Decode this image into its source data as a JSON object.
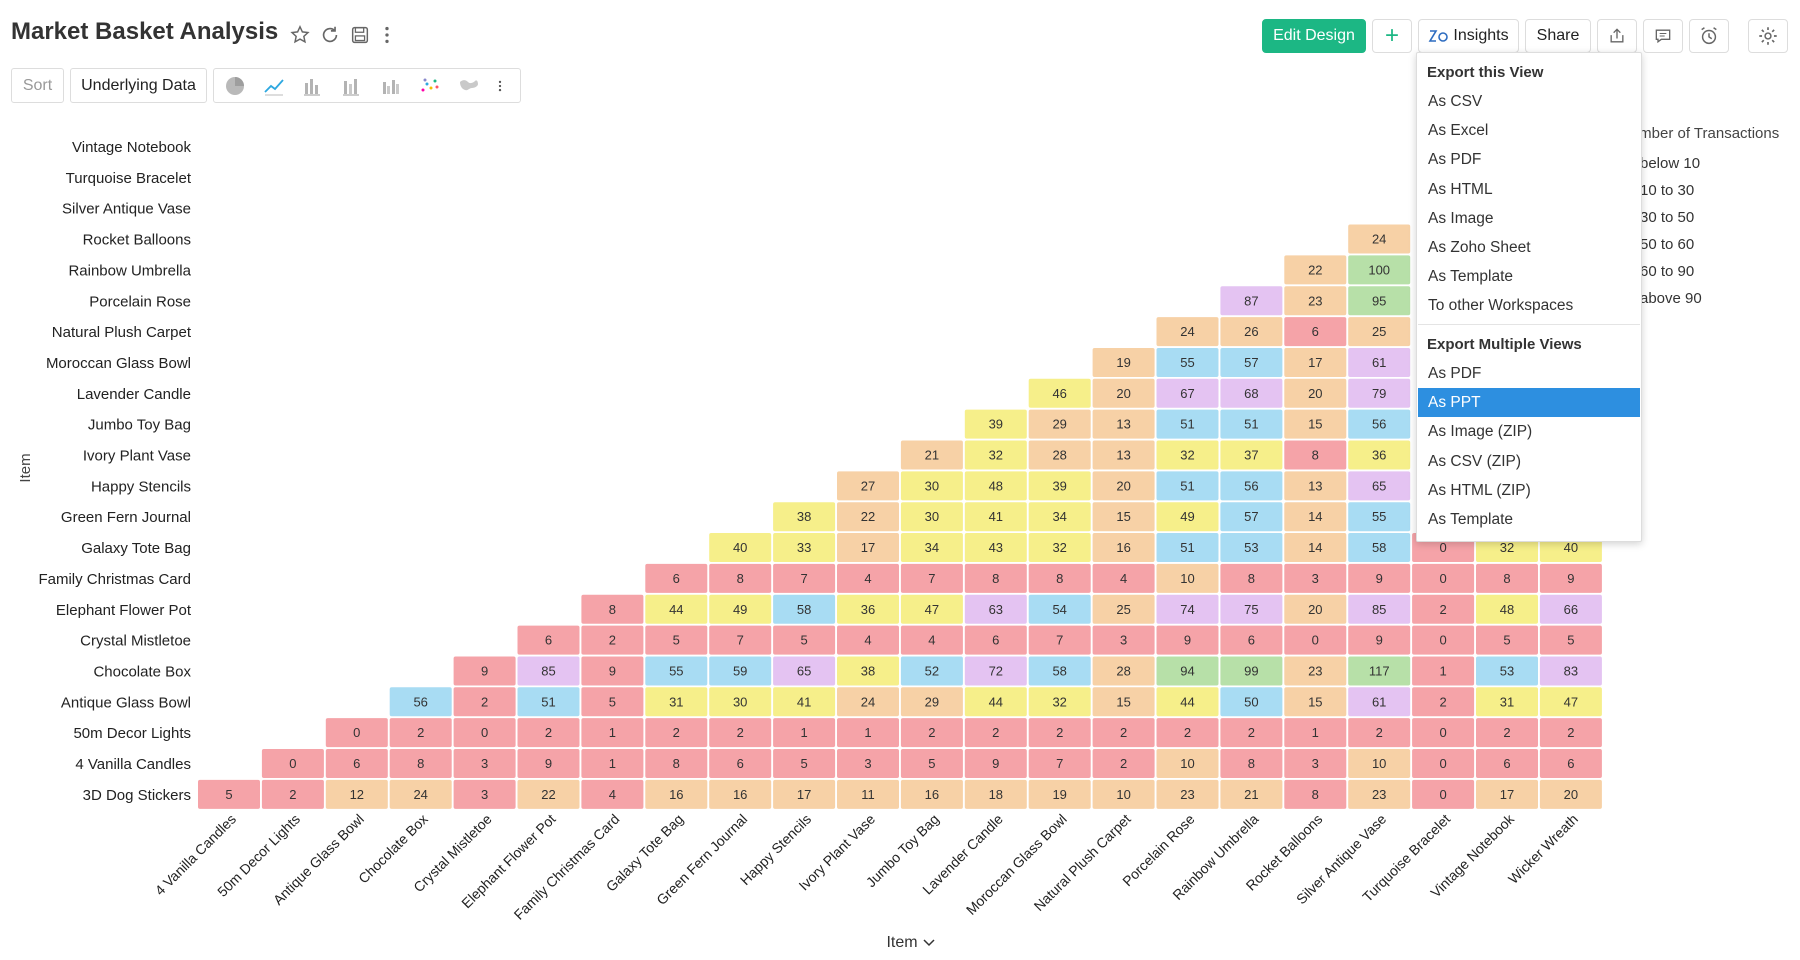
{
  "header": {
    "title": "Market Basket Analysis",
    "icons": [
      "star-icon",
      "refresh-icon",
      "save-icon",
      "more-vertical-icon"
    ],
    "edit_design_label": "Edit Design",
    "add_label": "+",
    "insights_label": "Insights",
    "share_label": "Share",
    "right_icons": [
      "export-icon",
      "comment-icon",
      "alarm-icon",
      "settings-icon"
    ],
    "accent_color": "#1cb784"
  },
  "toolbar": {
    "sort_label": "Sort",
    "underlying_data_label": "Underlying Data",
    "chart_type_icons": [
      "pie-chart-icon",
      "line-chart-icon",
      "bar-chart-icon",
      "stacked-bar-icon",
      "grouped-bar-icon",
      "scatter-icon",
      "map-icon",
      "more-vertical-icon"
    ]
  },
  "export_menu": {
    "section1_title": "Export this View",
    "section1_items": [
      "As CSV",
      "As Excel",
      "As PDF",
      "As HTML",
      "As Image",
      "As Zoho Sheet",
      "As Template",
      "To other Workspaces"
    ],
    "section2_title": "Export Multiple Views",
    "section2_items": [
      "As PDF",
      "As PPT",
      "As Image (ZIP)",
      "As CSV (ZIP)",
      "As HTML (ZIP)",
      "As Template"
    ],
    "selected_item": "As PPT",
    "selected_color": "#2d8fe0"
  },
  "legend": {
    "title": "Number of Transactions",
    "entries": [
      {
        "label": "below 10",
        "color": "#f5a3a8"
      },
      {
        "label": "10 to 30",
        "color": "#f7d1a6"
      },
      {
        "label": "30 to 50",
        "color": "#f6ef8a"
      },
      {
        "label": "50 to 60",
        "color": "#a8dcf3"
      },
      {
        "label": "60 to 90",
        "color": "#e4c3f2"
      },
      {
        "label": "above 90",
        "color": "#b7e0a8"
      }
    ]
  },
  "chart_data": {
    "type": "heatmap",
    "xlabel": "Item",
    "ylabel": "Item",
    "x_categories": [
      "4 Vanilla Candles",
      "50m Decor Lights",
      "Antique Glass Bowl",
      "Chocolate Box",
      "Crystal Mistletoe",
      "Elephant Flower Pot",
      "Family Christmas Card",
      "Galaxy Tote Bag",
      "Green Fern Journal",
      "Happy Stencils",
      "Ivory Plant Vase",
      "Jumbo Toy Bag",
      "Lavender Candle",
      "Moroccan Glass Bowl",
      "Natural Plush Carpet",
      "Porcelain Rose",
      "Rainbow Umbrella",
      "Rocket Balloons",
      "Silver Antique Vase",
      "Turquoise Bracelet",
      "Vintage Notebook",
      "Wicker Wreath"
    ],
    "y_categories_top_to_bottom": [
      "Vintage Notebook",
      "Turquoise Bracelet",
      "Silver Antique Vase",
      "Rocket Balloons",
      "Rainbow Umbrella",
      "Porcelain Rose",
      "Natural Plush Carpet",
      "Moroccan Glass Bowl",
      "Lavender Candle",
      "Jumbo Toy Bag",
      "Ivory Plant Vase",
      "Happy Stencils",
      "Green Fern Journal",
      "Galaxy Tote Bag",
      "Family Christmas Card",
      "Elephant Flower Pot",
      "Crystal Mistletoe",
      "Chocolate Box",
      "Antique Glass Bowl",
      "50m Decor Lights",
      "4 Vanilla Candles",
      "3D Dog Stickers"
    ],
    "rows": [
      {
        "y": "Silver Antique Vase",
        "values": [
          null,
          null,
          null,
          null,
          null,
          null,
          null,
          null,
          null,
          null,
          null,
          null,
          null,
          null,
          null,
          null,
          null,
          null,
          null,
          null,
          null,
          null
        ]
      },
      {
        "y": "Rocket Balloons",
        "values": [
          null,
          null,
          null,
          null,
          null,
          null,
          null,
          null,
          null,
          null,
          null,
          null,
          null,
          null,
          null,
          null,
          null,
          null,
          24,
          null,
          null,
          null
        ]
      },
      {
        "y": "Rainbow Umbrella",
        "values": [
          null,
          null,
          null,
          null,
          null,
          null,
          null,
          null,
          null,
          null,
          null,
          null,
          null,
          null,
          null,
          null,
          null,
          22,
          100,
          null,
          null,
          null
        ]
      },
      {
        "y": "Porcelain Rose",
        "values": [
          null,
          null,
          null,
          null,
          null,
          null,
          null,
          null,
          null,
          null,
          null,
          null,
          null,
          null,
          null,
          null,
          87,
          23,
          95,
          null,
          null,
          null
        ]
      },
      {
        "y": "Natural Plush Carpet",
        "values": [
          null,
          null,
          null,
          null,
          null,
          null,
          null,
          null,
          null,
          null,
          null,
          null,
          null,
          null,
          null,
          24,
          26,
          6,
          25,
          null,
          null,
          null
        ]
      },
      {
        "y": "Moroccan Glass Bowl",
        "values": [
          null,
          null,
          null,
          null,
          null,
          null,
          null,
          null,
          null,
          null,
          null,
          null,
          null,
          null,
          19,
          55,
          57,
          17,
          61,
          null,
          null,
          null
        ]
      },
      {
        "y": "Lavender Candle",
        "values": [
          null,
          null,
          null,
          null,
          null,
          null,
          null,
          null,
          null,
          null,
          null,
          null,
          null,
          46,
          20,
          67,
          68,
          20,
          79,
          null,
          null,
          null
        ]
      },
      {
        "y": "Jumbo Toy Bag",
        "values": [
          null,
          null,
          null,
          null,
          null,
          null,
          null,
          null,
          null,
          null,
          null,
          null,
          39,
          29,
          13,
          51,
          51,
          15,
          56,
          null,
          null,
          null
        ]
      },
      {
        "y": "Ivory Plant Vase",
        "values": [
          null,
          null,
          null,
          null,
          null,
          null,
          null,
          null,
          null,
          null,
          null,
          21,
          32,
          28,
          13,
          32,
          37,
          8,
          36,
          null,
          null,
          null
        ]
      },
      {
        "y": "Happy Stencils",
        "values": [
          null,
          null,
          null,
          null,
          null,
          null,
          null,
          null,
          null,
          null,
          27,
          30,
          48,
          39,
          20,
          51,
          56,
          13,
          65,
          null,
          null,
          null
        ]
      },
      {
        "y": "Green Fern Journal",
        "values": [
          null,
          null,
          null,
          null,
          null,
          null,
          null,
          null,
          null,
          38,
          22,
          30,
          41,
          34,
          15,
          49,
          57,
          14,
          55,
          null,
          null,
          null
        ]
      },
      {
        "y": "Galaxy Tote Bag",
        "values": [
          null,
          null,
          null,
          null,
          null,
          null,
          null,
          null,
          40,
          33,
          17,
          34,
          43,
          32,
          16,
          51,
          53,
          14,
          58,
          0,
          32,
          40
        ]
      },
      {
        "y": "Family Christmas Card",
        "values": [
          null,
          null,
          null,
          null,
          null,
          null,
          null,
          6,
          8,
          7,
          4,
          7,
          8,
          8,
          4,
          10,
          8,
          3,
          9,
          0,
          8,
          9
        ]
      },
      {
        "y": "Elephant Flower Pot",
        "values": [
          null,
          null,
          null,
          null,
          null,
          null,
          8,
          44,
          49,
          58,
          36,
          47,
          63,
          54,
          25,
          74,
          75,
          20,
          85,
          2,
          48,
          66
        ]
      },
      {
        "y": "Crystal Mistletoe",
        "values": [
          null,
          null,
          null,
          null,
          null,
          6,
          2,
          5,
          7,
          5,
          4,
          4,
          6,
          7,
          3,
          9,
          6,
          0,
          9,
          0,
          5,
          5
        ]
      },
      {
        "y": "Chocolate Box",
        "values": [
          null,
          null,
          null,
          null,
          9,
          85,
          9,
          55,
          59,
          65,
          38,
          52,
          72,
          58,
          28,
          94,
          99,
          23,
          117,
          1,
          53,
          83
        ]
      },
      {
        "y": "Antique Glass Bowl",
        "values": [
          null,
          null,
          null,
          56,
          2,
          51,
          5,
          31,
          30,
          41,
          24,
          29,
          44,
          32,
          15,
          44,
          50,
          15,
          61,
          2,
          31,
          47
        ]
      },
      {
        "y": "50m Decor Lights",
        "values": [
          null,
          null,
          0,
          2,
          0,
          2,
          1,
          2,
          2,
          1,
          1,
          2,
          2,
          2,
          2,
          2,
          2,
          1,
          2,
          0,
          2,
          2
        ]
      },
      {
        "y": "4 Vanilla Candles",
        "values": [
          null,
          0,
          6,
          8,
          3,
          9,
          1,
          8,
          6,
          5,
          3,
          5,
          9,
          7,
          2,
          10,
          8,
          3,
          10,
          0,
          6,
          6
        ]
      },
      {
        "y": "3D Dog Stickers",
        "values": [
          5,
          2,
          12,
          24,
          3,
          22,
          4,
          16,
          16,
          17,
          11,
          16,
          18,
          19,
          10,
          23,
          21,
          8,
          23,
          0,
          17,
          20
        ]
      }
    ]
  }
}
